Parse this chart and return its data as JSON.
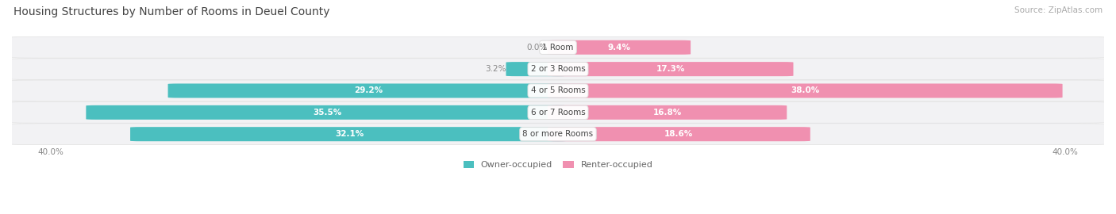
{
  "title": "Housing Structures by Number of Rooms in Deuel County",
  "source": "Source: ZipAtlas.com",
  "categories": [
    "1 Room",
    "2 or 3 Rooms",
    "4 or 5 Rooms",
    "6 or 7 Rooms",
    "8 or more Rooms"
  ],
  "owner_values": [
    0.0,
    3.2,
    29.2,
    35.5,
    32.1
  ],
  "renter_values": [
    9.4,
    17.3,
    38.0,
    16.8,
    18.6
  ],
  "owner_color": "#4BBFBF",
  "renter_color": "#F090B0",
  "row_bg_color": "#F2F2F4",
  "max_value": 40.0,
  "figsize": [
    14.06,
    2.7
  ],
  "dpi": 100
}
